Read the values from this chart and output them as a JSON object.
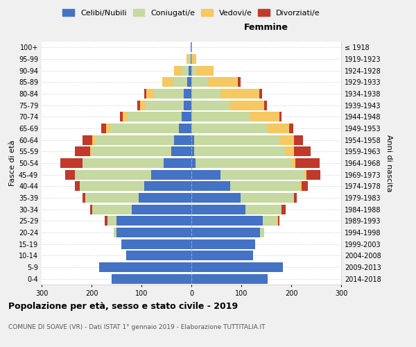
{
  "age_groups": [
    "0-4",
    "5-9",
    "10-14",
    "15-19",
    "20-24",
    "25-29",
    "30-34",
    "35-39",
    "40-44",
    "45-49",
    "50-54",
    "55-59",
    "60-64",
    "65-69",
    "70-74",
    "75-79",
    "80-84",
    "85-89",
    "90-94",
    "95-99",
    "100+"
  ],
  "birth_years": [
    "2014-2018",
    "2009-2013",
    "2004-2008",
    "1999-2003",
    "1994-1998",
    "1989-1993",
    "1984-1988",
    "1979-1983",
    "1974-1978",
    "1969-1973",
    "1964-1968",
    "1959-1963",
    "1954-1958",
    "1949-1953",
    "1944-1948",
    "1939-1943",
    "1934-1938",
    "1929-1933",
    "1924-1928",
    "1919-1923",
    "≤ 1918"
  ],
  "male_celibi": [
    160,
    185,
    130,
    140,
    150,
    150,
    120,
    105,
    95,
    80,
    55,
    40,
    35,
    25,
    20,
    15,
    15,
    8,
    5,
    2,
    2
  ],
  "male_coniugati": [
    0,
    0,
    0,
    0,
    5,
    18,
    78,
    108,
    128,
    153,
    163,
    158,
    158,
    138,
    108,
    78,
    60,
    30,
    15,
    3,
    0
  ],
  "male_vedovi": [
    0,
    0,
    0,
    0,
    0,
    0,
    0,
    0,
    0,
    0,
    0,
    5,
    5,
    8,
    10,
    10,
    15,
    20,
    15,
    5,
    0
  ],
  "male_divorziati": [
    0,
    0,
    0,
    0,
    0,
    5,
    5,
    5,
    10,
    20,
    45,
    30,
    20,
    10,
    5,
    5,
    5,
    0,
    0,
    0,
    0
  ],
  "female_celibi": [
    153,
    183,
    123,
    128,
    138,
    143,
    108,
    98,
    78,
    58,
    8,
    5,
    5,
    0,
    0,
    0,
    0,
    0,
    0,
    0,
    0
  ],
  "female_coniugati": [
    0,
    0,
    0,
    0,
    8,
    28,
    73,
    108,
    138,
    168,
    193,
    183,
    173,
    153,
    118,
    78,
    58,
    33,
    10,
    0,
    0
  ],
  "female_vedovi": [
    0,
    0,
    0,
    0,
    0,
    3,
    0,
    0,
    5,
    5,
    8,
    18,
    28,
    43,
    58,
    68,
    78,
    60,
    35,
    10,
    2
  ],
  "female_divorziati": [
    0,
    0,
    0,
    0,
    0,
    3,
    8,
    5,
    13,
    28,
    48,
    33,
    18,
    8,
    5,
    5,
    5,
    5,
    0,
    0,
    0
  ],
  "color_celibi": "#4472c4",
  "color_coniugati": "#c5d9a0",
  "color_vedovi": "#f5c862",
  "color_divorziati": "#c0392b",
  "title": "Popolazione per età, sesso e stato civile - 2019",
  "subtitle": "COMUNE DI SOAVE (VR) - Dati ISTAT 1° gennaio 2019 - Elaborazione TUTTITALIA.IT",
  "xlabel_right": "Femmine",
  "ylabel_left": "Fasce di età",
  "ylabel_right": "Anni di nascita",
  "xlim": 300,
  "bg_color": "#f0f0f0",
  "plot_bg": "#ffffff"
}
